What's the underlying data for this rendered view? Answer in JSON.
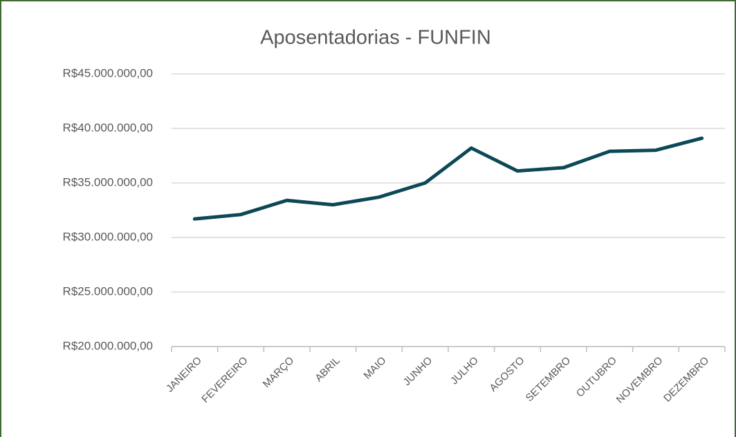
{
  "chart_data": {
    "type": "line",
    "title": "Aposentadorias - FUNFIN",
    "categories": [
      "JANEIRO",
      "FEVEREIRO",
      "MARÇO",
      "ABRIL",
      "MAIO",
      "JUNHO",
      "JULHO",
      "AGOSTO",
      "SETEMBRO",
      "OUTUBRO",
      "NOVEMBRO",
      "DEZEMBRO"
    ],
    "series": [
      {
        "name": "Aposentadorias",
        "color": "#0d4856",
        "values": [
          31700000,
          32100000,
          33400000,
          33000000,
          33700000,
          35000000,
          38200000,
          36100000,
          36400000,
          37900000,
          38000000,
          39100000
        ]
      }
    ],
    "ylim": [
      20000000,
      45000000
    ],
    "yticks": [
      {
        "value": 20000000,
        "label": "R$20.000.000,00"
      },
      {
        "value": 25000000,
        "label": "R$25.000.000,00"
      },
      {
        "value": 30000000,
        "label": "R$30.000.000,00"
      },
      {
        "value": 35000000,
        "label": "R$35.000.000,00"
      },
      {
        "value": 40000000,
        "label": "R$40.000.000,00"
      },
      {
        "value": 45000000,
        "label": "R$45.000.000,00"
      }
    ],
    "grid": true
  }
}
